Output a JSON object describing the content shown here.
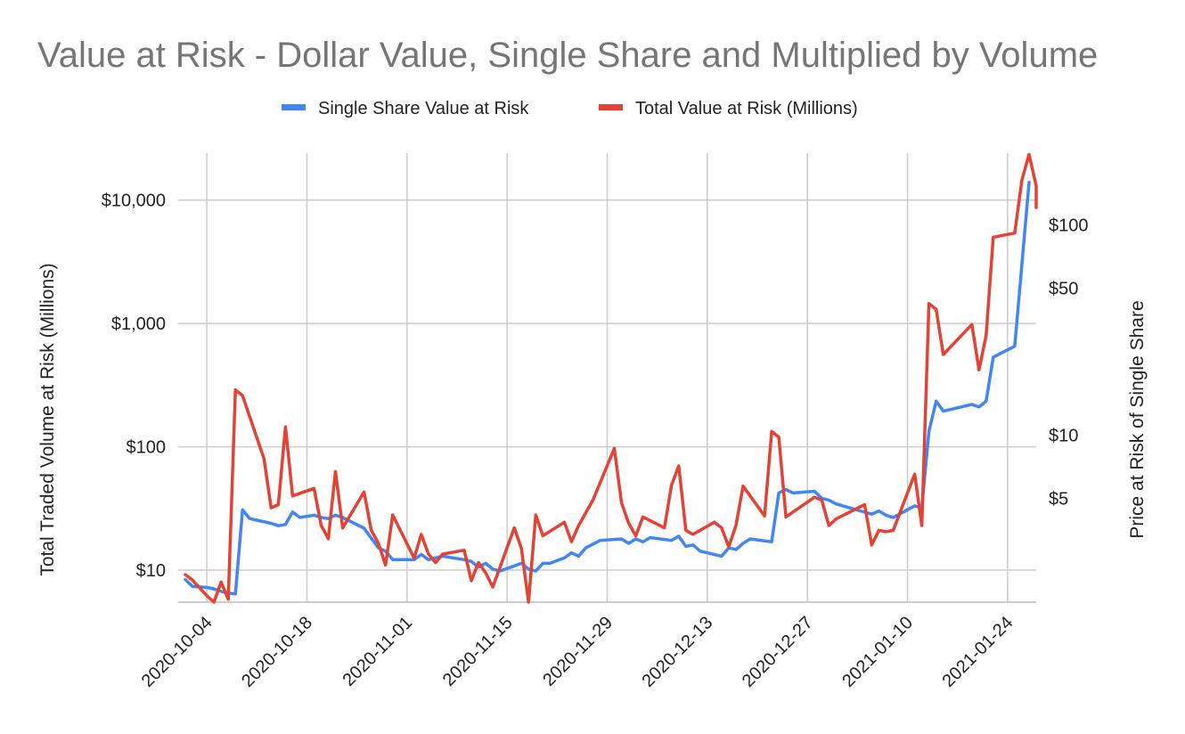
{
  "chart_data": {
    "type": "line",
    "title": "Value at Risk - Dollar Value, Single Share and Multiplied by Volume",
    "legend": {
      "position": "top"
    },
    "grid": true,
    "x_axis": {
      "type": "date",
      "ticks": [
        "2020-10-04",
        "2020-10-18",
        "2020-11-01",
        "2020-11-15",
        "2020-11-29",
        "2020-12-13",
        "2020-12-27",
        "2021-01-10",
        "2021-01-24"
      ],
      "range": [
        "2020-09-30",
        "2021-01-28"
      ]
    },
    "y_left": {
      "title": "Total Traded Volume at Risk (Millions)",
      "scale": "log",
      "range": [
        5.5,
        24000
      ],
      "ticks": [
        10,
        100,
        1000,
        10000
      ],
      "tick_labels": [
        "$10",
        "$100",
        "$1,000",
        "$10,000"
      ]
    },
    "y_right": {
      "title": "Price at Risk of Single Share",
      "scale": "log",
      "range": [
        1.6,
        220
      ],
      "ticks": [
        5,
        10,
        50,
        100
      ],
      "tick_labels": [
        "$5",
        "$10",
        "$50",
        "$100"
      ]
    },
    "series": [
      {
        "name": "Single Share Value at Risk",
        "axis": "right",
        "color": "#4285f4",
        "points": [
          [
            "2020-10-01",
            2.05
          ],
          [
            "2020-10-02",
            1.9
          ],
          [
            "2020-10-04",
            1.88
          ],
          [
            "2020-10-05",
            1.85
          ],
          [
            "2020-10-06",
            1.8
          ],
          [
            "2020-10-07",
            1.77
          ],
          [
            "2020-10-08",
            1.75
          ],
          [
            "2020-10-09",
            4.4
          ],
          [
            "2020-10-10",
            4.0
          ],
          [
            "2020-10-13",
            3.8
          ],
          [
            "2020-10-14",
            3.7
          ],
          [
            "2020-10-15",
            3.75
          ],
          [
            "2020-10-16",
            4.3
          ],
          [
            "2020-10-17",
            4.05
          ],
          [
            "2020-10-19",
            4.15
          ],
          [
            "2020-10-20",
            4.05
          ],
          [
            "2020-10-21",
            4.0
          ],
          [
            "2020-10-22",
            4.15
          ],
          [
            "2020-10-23",
            4.05
          ],
          [
            "2020-10-26",
            3.6
          ],
          [
            "2020-10-28",
            2.9
          ],
          [
            "2020-10-29",
            2.8
          ],
          [
            "2020-10-30",
            2.55
          ],
          [
            "2020-11-02",
            2.55
          ],
          [
            "2020-11-03",
            2.7
          ],
          [
            "2020-11-04",
            2.55
          ],
          [
            "2020-11-05",
            2.6
          ],
          [
            "2020-11-06",
            2.65
          ],
          [
            "2020-11-09",
            2.55
          ],
          [
            "2020-11-10",
            2.5
          ],
          [
            "2020-11-11",
            2.35
          ],
          [
            "2020-11-12",
            2.45
          ],
          [
            "2020-11-13",
            2.3
          ],
          [
            "2020-11-14",
            2.25
          ],
          [
            "2020-11-17",
            2.45
          ],
          [
            "2020-11-18",
            2.3
          ],
          [
            "2020-11-19",
            2.25
          ],
          [
            "2020-11-20",
            2.45
          ],
          [
            "2020-11-21",
            2.45
          ],
          [
            "2020-11-23",
            2.6
          ],
          [
            "2020-11-24",
            2.75
          ],
          [
            "2020-11-25",
            2.65
          ],
          [
            "2020-11-26",
            2.9
          ],
          [
            "2020-11-28",
            3.15
          ],
          [
            "2020-12-01",
            3.2
          ],
          [
            "2020-12-02",
            3.05
          ],
          [
            "2020-12-03",
            3.2
          ],
          [
            "2020-12-04",
            3.1
          ],
          [
            "2020-12-05",
            3.25
          ],
          [
            "2020-12-08",
            3.15
          ],
          [
            "2020-12-09",
            3.3
          ],
          [
            "2020-12-10",
            2.95
          ],
          [
            "2020-12-11",
            3.0
          ],
          [
            "2020-12-12",
            2.8
          ],
          [
            "2020-12-15",
            2.65
          ],
          [
            "2020-12-16",
            2.9
          ],
          [
            "2020-12-17",
            2.85
          ],
          [
            "2020-12-18",
            3.05
          ],
          [
            "2020-12-19",
            3.2
          ],
          [
            "2020-12-22",
            3.1
          ],
          [
            "2020-12-23",
            5.3
          ],
          [
            "2020-12-24",
            5.5
          ],
          [
            "2020-12-25",
            5.3
          ],
          [
            "2020-12-28",
            5.4
          ],
          [
            "2020-12-29",
            5.0
          ],
          [
            "2020-12-30",
            4.9
          ],
          [
            "2020-12-31",
            4.7
          ],
          [
            "2021-01-05",
            4.2
          ],
          [
            "2021-01-06",
            4.35
          ],
          [
            "2021-01-07",
            4.15
          ],
          [
            "2021-01-08",
            4.05
          ],
          [
            "2021-01-11",
            4.6
          ],
          [
            "2021-01-12",
            4.5
          ],
          [
            "2021-01-13",
            10.4
          ],
          [
            "2021-01-14",
            14.5
          ],
          [
            "2021-01-15",
            13.0
          ],
          [
            "2021-01-19",
            14.0
          ],
          [
            "2021-01-20",
            13.6
          ],
          [
            "2021-01-21",
            14.5
          ],
          [
            "2021-01-22",
            23.5
          ],
          [
            "2021-01-25",
            26.5
          ],
          [
            "2021-01-27",
            160.0
          ]
        ]
      },
      {
        "name": "Total Value at Risk (Millions)",
        "axis": "left",
        "color": "#e34234",
        "points": [
          [
            "2020-10-01",
            9.2
          ],
          [
            "2020-10-02",
            8.3
          ],
          [
            "2020-10-04",
            6.2
          ],
          [
            "2020-10-05",
            5.5
          ],
          [
            "2020-10-06",
            8.0
          ],
          [
            "2020-10-07",
            5.8
          ],
          [
            "2020-10-08",
            290.0
          ],
          [
            "2020-10-09",
            260.0
          ],
          [
            "2020-10-12",
            80.0
          ],
          [
            "2020-10-13",
            32.0
          ],
          [
            "2020-10-14",
            34.0
          ],
          [
            "2020-10-15",
            145.0
          ],
          [
            "2020-10-16",
            40.0
          ],
          [
            "2020-10-19",
            46.0
          ],
          [
            "2020-10-20",
            23.0
          ],
          [
            "2020-10-21",
            18.0
          ],
          [
            "2020-10-22",
            63.0
          ],
          [
            "2020-10-23",
            22.0
          ],
          [
            "2020-10-26",
            43.0
          ],
          [
            "2020-10-27",
            21.0
          ],
          [
            "2020-10-28",
            16.5
          ],
          [
            "2020-10-29",
            11.0
          ],
          [
            "2020-10-30",
            28.0
          ],
          [
            "2020-11-02",
            12.5
          ],
          [
            "2020-11-03",
            19.5
          ],
          [
            "2020-11-04",
            13.5
          ],
          [
            "2020-11-05",
            11.5
          ],
          [
            "2020-11-06",
            13.5
          ],
          [
            "2020-11-09",
            14.5
          ],
          [
            "2020-11-10",
            8.2
          ],
          [
            "2020-11-11",
            11.5
          ],
          [
            "2020-11-12",
            9.5
          ],
          [
            "2020-11-13",
            7.3
          ],
          [
            "2020-11-16",
            22.0
          ],
          [
            "2020-11-17",
            15.0
          ],
          [
            "2020-11-18",
            5.5
          ],
          [
            "2020-11-19",
            28.0
          ],
          [
            "2020-11-20",
            19.0
          ],
          [
            "2020-11-23",
            24.5
          ],
          [
            "2020-11-24",
            17.0
          ],
          [
            "2020-11-25",
            23.0
          ],
          [
            "2020-11-27",
            37.0
          ],
          [
            "2020-11-30",
            97.0
          ],
          [
            "2020-12-01",
            35.0
          ],
          [
            "2020-12-02",
            24.0
          ],
          [
            "2020-12-03",
            19.0
          ],
          [
            "2020-12-04",
            27.0
          ],
          [
            "2020-12-07",
            22.0
          ],
          [
            "2020-12-08",
            49.0
          ],
          [
            "2020-12-09",
            70.0
          ],
          [
            "2020-12-10",
            21.0
          ],
          [
            "2020-12-11",
            19.5
          ],
          [
            "2020-12-14",
            24.5
          ],
          [
            "2020-12-15",
            22.0
          ],
          [
            "2020-12-16",
            15.5
          ],
          [
            "2020-12-17",
            23.0
          ],
          [
            "2020-12-18",
            48.0
          ],
          [
            "2020-12-21",
            27.5
          ],
          [
            "2020-12-22",
            133.0
          ],
          [
            "2020-12-23",
            120.0
          ],
          [
            "2020-12-24",
            27.0
          ],
          [
            "2020-12-28",
            39.0
          ],
          [
            "2020-12-29",
            37.0
          ],
          [
            "2020-12-30",
            23.0
          ],
          [
            "2020-12-31",
            26.0
          ],
          [
            "2021-01-04",
            34.0
          ],
          [
            "2021-01-05",
            16.0
          ],
          [
            "2021-01-06",
            21.0
          ],
          [
            "2021-01-07",
            20.5
          ],
          [
            "2021-01-08",
            21.0
          ],
          [
            "2021-01-11",
            60.0
          ],
          [
            "2021-01-12",
            23.0
          ],
          [
            "2021-01-13",
            1450.0
          ],
          [
            "2021-01-14",
            1300.0
          ],
          [
            "2021-01-15",
            560.0
          ],
          [
            "2021-01-19",
            980.0
          ],
          [
            "2021-01-20",
            420.0
          ],
          [
            "2021-01-21",
            800.0
          ],
          [
            "2021-01-22",
            5000.0
          ],
          [
            "2021-01-25",
            5400.0
          ],
          [
            "2021-01-26",
            14500.0
          ],
          [
            "2021-01-27",
            23500.0
          ],
          [
            "2021-01-28",
            13000.0
          ],
          [
            "2021-01-28",
            8700.0
          ]
        ]
      }
    ]
  }
}
